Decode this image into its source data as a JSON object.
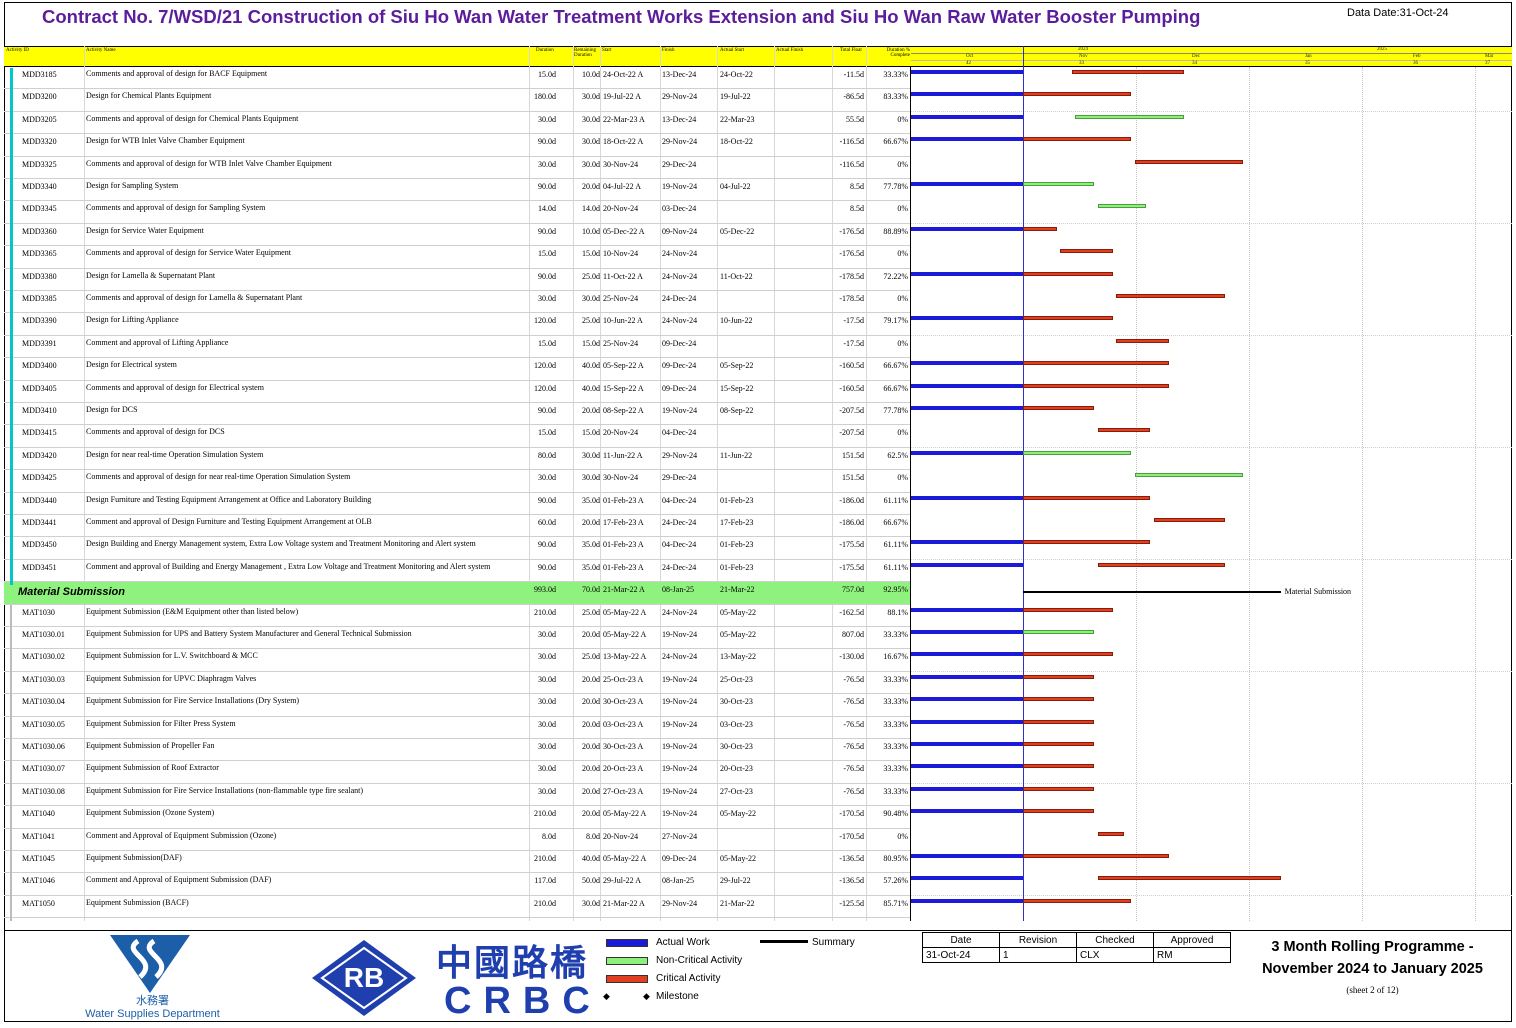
{
  "title": "Contract No. 7/WSD/21 Construction of Siu Ho Wan Water Treatment Works Extension and Siu Ho Wan Raw Water Booster Pumping",
  "data_date": "Data Date:31-Oct-24",
  "columns": [
    "Activity ID",
    "Activity Name",
    "Duration",
    "Remaining Duration",
    "Start",
    "Finish",
    "Actual Start",
    "Actual Finish",
    "Total Float",
    "Duration % Complete"
  ],
  "timescale": {
    "years": [
      "2024",
      "2025"
    ],
    "months": [
      "Oct",
      "Nov",
      "Dec",
      "Jan",
      "Feb",
      "Mar"
    ],
    "weeks": [
      "42",
      "33",
      "34",
      "35",
      "36",
      "37"
    ]
  },
  "rows": [
    {
      "id": "MDD3185",
      "name": "Comments and approval of design for BACF Equipment",
      "dur": "15.0d",
      "rem": "10.0d",
      "start": "24-Oct-22 A",
      "finish": "13-Dec-24",
      "astart": "24-Oct-22",
      "tf": "-11.5d",
      "pct": "33.33%"
    },
    {
      "id": "MDD3200",
      "name": "Design for Chemical Plants Equipment",
      "dur": "180.0d",
      "rem": "30.0d",
      "start": "19-Jul-22 A",
      "finish": "29-Nov-24",
      "astart": "19-Jul-22",
      "tf": "-86.5d",
      "pct": "83.33%"
    },
    {
      "id": "MDD3205",
      "name": "Comments and approval of design for Chemical Plants Equipment",
      "dur": "30.0d",
      "rem": "30.0d",
      "start": "22-Mar-23 A",
      "finish": "13-Dec-24",
      "astart": "22-Mar-23",
      "tf": "55.5d",
      "pct": "0%"
    },
    {
      "id": "MDD3320",
      "name": "Design for WTB Inlet Valve Chamber Equipment",
      "dur": "90.0d",
      "rem": "30.0d",
      "start": "18-Oct-22 A",
      "finish": "29-Nov-24",
      "astart": "18-Oct-22",
      "tf": "-116.5d",
      "pct": "66.67%"
    },
    {
      "id": "MDD3325",
      "name": "Comments and approval of design for WTB Inlet Valve Chamber Equipment",
      "dur": "30.0d",
      "rem": "30.0d",
      "start": "30-Nov-24",
      "finish": "29-Dec-24",
      "astart": "",
      "tf": "-116.5d",
      "pct": "0%"
    },
    {
      "id": "MDD3340",
      "name": "Design for Sampling System",
      "dur": "90.0d",
      "rem": "20.0d",
      "start": "04-Jul-22 A",
      "finish": "19-Nov-24",
      "astart": "04-Jul-22",
      "tf": "8.5d",
      "pct": "77.78%"
    },
    {
      "id": "MDD3345",
      "name": "Comments and approval of design for Sampling System",
      "dur": "14.0d",
      "rem": "14.0d",
      "start": "20-Nov-24",
      "finish": "03-Dec-24",
      "astart": "",
      "tf": "8.5d",
      "pct": "0%"
    },
    {
      "id": "MDD3360",
      "name": "Design for Service Water Equipment",
      "dur": "90.0d",
      "rem": "10.0d",
      "start": "05-Dec-22 A",
      "finish": "09-Nov-24",
      "astart": "05-Dec-22",
      "tf": "-176.5d",
      "pct": "88.89%"
    },
    {
      "id": "MDD3365",
      "name": "Comments and approval of design for Service Water Equipment",
      "dur": "15.0d",
      "rem": "15.0d",
      "start": "10-Nov-24",
      "finish": "24-Nov-24",
      "astart": "",
      "tf": "-176.5d",
      "pct": "0%"
    },
    {
      "id": "MDD3380",
      "name": "Design for Lamella & Supernatant Plant",
      "dur": "90.0d",
      "rem": "25.0d",
      "start": "11-Oct-22 A",
      "finish": "24-Nov-24",
      "astart": "11-Oct-22",
      "tf": "-178.5d",
      "pct": "72.22%"
    },
    {
      "id": "MDD3385",
      "name": "Comments and approval of design for Lamella & Supernatant Plant",
      "dur": "30.0d",
      "rem": "30.0d",
      "start": "25-Nov-24",
      "finish": "24-Dec-24",
      "astart": "",
      "tf": "-178.5d",
      "pct": "0%"
    },
    {
      "id": "MDD3390",
      "name": "Design for Lifting Appliance",
      "dur": "120.0d",
      "rem": "25.0d",
      "start": "10-Jun-22 A",
      "finish": "24-Nov-24",
      "astart": "10-Jun-22",
      "tf": "-17.5d",
      "pct": "79.17%"
    },
    {
      "id": "MDD3391",
      "name": "Comment and approval of Lifting Appliance",
      "dur": "15.0d",
      "rem": "15.0d",
      "start": "25-Nov-24",
      "finish": "09-Dec-24",
      "astart": "",
      "tf": "-17.5d",
      "pct": "0%"
    },
    {
      "id": "MDD3400",
      "name": "Design for Electrical system",
      "dur": "120.0d",
      "rem": "40.0d",
      "start": "05-Sep-22 A",
      "finish": "09-Dec-24",
      "astart": "05-Sep-22",
      "tf": "-160.5d",
      "pct": "66.67%"
    },
    {
      "id": "MDD3405",
      "name": "Comments and approval of design for Electrical system",
      "dur": "120.0d",
      "rem": "40.0d",
      "start": "15-Sep-22 A",
      "finish": "09-Dec-24",
      "astart": "15-Sep-22",
      "tf": "-160.5d",
      "pct": "66.67%"
    },
    {
      "id": "MDD3410",
      "name": "Design for DCS",
      "dur": "90.0d",
      "rem": "20.0d",
      "start": "08-Sep-22 A",
      "finish": "19-Nov-24",
      "astart": "08-Sep-22",
      "tf": "-207.5d",
      "pct": "77.78%"
    },
    {
      "id": "MDD3415",
      "name": "Comments and approval of design for DCS",
      "dur": "15.0d",
      "rem": "15.0d",
      "start": "20-Nov-24",
      "finish": "04-Dec-24",
      "astart": "",
      "tf": "-207.5d",
      "pct": "0%"
    },
    {
      "id": "MDD3420",
      "name": "Design for near real-time Operation Simulation System",
      "dur": "80.0d",
      "rem": "30.0d",
      "start": "11-Jun-22 A",
      "finish": "29-Nov-24",
      "astart": "11-Jun-22",
      "tf": "151.5d",
      "pct": "62.5%"
    },
    {
      "id": "MDD3425",
      "name": "Comments and approval of design for near real-time Operation Simulation System",
      "dur": "30.0d",
      "rem": "30.0d",
      "start": "30-Nov-24",
      "finish": "29-Dec-24",
      "astart": "",
      "tf": "151.5d",
      "pct": "0%"
    },
    {
      "id": "MDD3440",
      "name": "Design Furniture and Testing Equipment Arrangement at Office and Laboratory Building",
      "dur": "90.0d",
      "rem": "35.0d",
      "start": "01-Feb-23 A",
      "finish": "04-Dec-24",
      "astart": "01-Feb-23",
      "tf": "-186.0d",
      "pct": "61.11%"
    },
    {
      "id": "MDD3441",
      "name": "Comment and approval of Design Furniture and Testing Equipment Arrangement at OLB",
      "dur": "60.0d",
      "rem": "20.0d",
      "start": "17-Feb-23 A",
      "finish": "24-Dec-24",
      "astart": "17-Feb-23",
      "tf": "-186.0d",
      "pct": "66.67%"
    },
    {
      "id": "MDD3450",
      "name": "Design Building and Energy Management system, Extra Low Voltage system and Treatment Monitoring and Alert system",
      "dur": "90.0d",
      "rem": "35.0d",
      "start": "01-Feb-23 A",
      "finish": "04-Dec-24",
      "astart": "01-Feb-23",
      "tf": "-175.5d",
      "pct": "61.11%"
    },
    {
      "id": "MDD3451",
      "name": "Comment and approval of Building and Energy Management , Extra Low Voltage and Treatment Monitoring and Alert system",
      "dur": "90.0d",
      "rem": "35.0d",
      "start": "01-Feb-23 A",
      "finish": "24-Dec-24",
      "astart": "01-Feb-23",
      "tf": "-175.5d",
      "pct": "61.11%"
    },
    {
      "group": true,
      "name": "Material Submission",
      "dur": "993.0d",
      "rem": "70.0d",
      "start": "21-Mar-22 A",
      "finish": "08-Jan-25",
      "astart": "21-Mar-22",
      "tf": "757.0d",
      "pct": "92.95%"
    },
    {
      "id": "MAT1030",
      "name": "Equipment Submission (E&M Equipment other than listed below)",
      "dur": "210.0d",
      "rem": "25.0d",
      "start": "05-May-22 A",
      "finish": "24-Nov-24",
      "astart": "05-May-22",
      "tf": "-162.5d",
      "pct": "88.1%"
    },
    {
      "id": "MAT1030.01",
      "name": "Equipment Submission for UPS and Battery System Manufacturer and General Technical Submission",
      "dur": "30.0d",
      "rem": "20.0d",
      "start": "05-May-22 A",
      "finish": "19-Nov-24",
      "astart": "05-May-22",
      "tf": "807.0d",
      "pct": "33.33%"
    },
    {
      "id": "MAT1030.02",
      "name": "Equipment Submission for L.V. Switchboard & MCC",
      "dur": "30.0d",
      "rem": "25.0d",
      "start": "13-May-22 A",
      "finish": "24-Nov-24",
      "astart": "13-May-22",
      "tf": "-130.0d",
      "pct": "16.67%"
    },
    {
      "id": "MAT1030.03",
      "name": "Equipment Submission for UPVC Diaphragm Valves",
      "dur": "30.0d",
      "rem": "20.0d",
      "start": "25-Oct-23 A",
      "finish": "19-Nov-24",
      "astart": "25-Oct-23",
      "tf": "-76.5d",
      "pct": "33.33%"
    },
    {
      "id": "MAT1030.04",
      "name": "Equipment Submission for Fire Service Installations (Dry System)",
      "dur": "30.0d",
      "rem": "20.0d",
      "start": "30-Oct-23 A",
      "finish": "19-Nov-24",
      "astart": "30-Oct-23",
      "tf": "-76.5d",
      "pct": "33.33%"
    },
    {
      "id": "MAT1030.05",
      "name": "Equipment Submission for Filter Press System",
      "dur": "30.0d",
      "rem": "20.0d",
      "start": "03-Oct-23 A",
      "finish": "19-Nov-24",
      "astart": "03-Oct-23",
      "tf": "-76.5d",
      "pct": "33.33%"
    },
    {
      "id": "MAT1030.06",
      "name": "Equipment Submission of Propeller Fan",
      "dur": "30.0d",
      "rem": "20.0d",
      "start": "30-Oct-23 A",
      "finish": "19-Nov-24",
      "astart": "30-Oct-23",
      "tf": "-76.5d",
      "pct": "33.33%"
    },
    {
      "id": "MAT1030.07",
      "name": "Equipment Submission of Roof Extractor",
      "dur": "30.0d",
      "rem": "20.0d",
      "start": "20-Oct-23 A",
      "finish": "19-Nov-24",
      "astart": "20-Oct-23",
      "tf": "-76.5d",
      "pct": "33.33%"
    },
    {
      "id": "MAT1030.08",
      "name": "Equipment Submission for Fire Service Installations (non-flammable type fire sealant)",
      "dur": "30.0d",
      "rem": "20.0d",
      "start": "27-Oct-23 A",
      "finish": "19-Nov-24",
      "astart": "27-Oct-23",
      "tf": "-76.5d",
      "pct": "33.33%"
    },
    {
      "id": "MAT1040",
      "name": "Equipment Submission (Ozone System)",
      "dur": "210.0d",
      "rem": "20.0d",
      "start": "05-May-22 A",
      "finish": "19-Nov-24",
      "astart": "05-May-22",
      "tf": "-170.5d",
      "pct": "90.48%"
    },
    {
      "id": "MAT1041",
      "name": "Comment and Approval of Equipment Submission (Ozone)",
      "dur": "8.0d",
      "rem": "8.0d",
      "start": "20-Nov-24",
      "finish": "27-Nov-24",
      "astart": "",
      "tf": "-170.5d",
      "pct": "0%"
    },
    {
      "id": "MAT1045",
      "name": "Equipment Submission(DAF)",
      "dur": "210.0d",
      "rem": "40.0d",
      "start": "05-May-22 A",
      "finish": "09-Dec-24",
      "astart": "05-May-22",
      "tf": "-136.5d",
      "pct": "80.95%"
    },
    {
      "id": "MAT1046",
      "name": "Comment and Approval of Equipment Submission (DAF)",
      "dur": "117.0d",
      "rem": "50.0d",
      "start": "29-Jul-22 A",
      "finish": "08-Jan-25",
      "astart": "29-Jul-22",
      "tf": "-136.5d",
      "pct": "57.26%"
    },
    {
      "id": "MAT1050",
      "name": "Equipment Submission (BACF)",
      "dur": "210.0d",
      "rem": "30.0d",
      "start": "21-Mar-22 A",
      "finish": "29-Nov-24",
      "astart": "21-Mar-22",
      "tf": "-125.5d",
      "pct": "85.71%"
    }
  ],
  "gantt_bars": [
    {
      "a": 1,
      "s": "13-Nov-24",
      "f": "13-Dec-24",
      "t": "crit"
    },
    {
      "a": 1,
      "s": "31-Oct-24",
      "f": "29-Nov-24",
      "t": "crit"
    },
    {
      "a": 1,
      "s": "14-Nov-24",
      "f": "13-Dec-24",
      "t": "noncrit"
    },
    {
      "a": 1,
      "s": "31-Oct-24",
      "f": "29-Nov-24",
      "t": "crit"
    },
    {
      "a": 0,
      "s": "30-Nov-24",
      "f": "29-Dec-24",
      "t": "crit"
    },
    {
      "a": 1,
      "s": "31-Oct-24",
      "f": "19-Nov-24",
      "t": "noncrit"
    },
    {
      "a": 0,
      "s": "20-Nov-24",
      "f": "03-Dec-24",
      "t": "noncrit"
    },
    {
      "a": 1,
      "s": "31-Oct-24",
      "f": "09-Nov-24",
      "t": "crit"
    },
    {
      "a": 0,
      "s": "10-Nov-24",
      "f": "24-Nov-24",
      "t": "crit"
    },
    {
      "a": 1,
      "s": "31-Oct-24",
      "f": "24-Nov-24",
      "t": "crit"
    },
    {
      "a": 0,
      "s": "25-Nov-24",
      "f": "24-Dec-24",
      "t": "crit"
    },
    {
      "a": 1,
      "s": "31-Oct-24",
      "f": "24-Nov-24",
      "t": "crit"
    },
    {
      "a": 0,
      "s": "25-Nov-24",
      "f": "09-Dec-24",
      "t": "crit"
    },
    {
      "a": 1,
      "s": "31-Oct-24",
      "f": "09-Dec-24",
      "t": "crit"
    },
    {
      "a": 1,
      "s": "31-Oct-24",
      "f": "09-Dec-24",
      "t": "crit"
    },
    {
      "a": 1,
      "s": "31-Oct-24",
      "f": "19-Nov-24",
      "t": "crit"
    },
    {
      "a": 0,
      "s": "20-Nov-24",
      "f": "04-Dec-24",
      "t": "crit"
    },
    {
      "a": 1,
      "s": "31-Oct-24",
      "f": "29-Nov-24",
      "t": "noncrit"
    },
    {
      "a": 0,
      "s": "30-Nov-24",
      "f": "29-Dec-24",
      "t": "noncrit"
    },
    {
      "a": 1,
      "s": "31-Oct-24",
      "f": "04-Dec-24",
      "t": "crit"
    },
    {
      "a": 0,
      "s": "05-Dec-24",
      "f": "24-Dec-24",
      "t": "crit"
    },
    {
      "a": 1,
      "s": "31-Oct-24",
      "f": "04-Dec-24",
      "t": "crit"
    },
    {
      "a": 1,
      "s": "20-Nov-24",
      "f": "24-Dec-24",
      "t": "crit"
    },
    {
      "summary": true,
      "s": "31-Oct-24",
      "f": "08-Jan-25"
    },
    {
      "a": 1,
      "s": "31-Oct-24",
      "f": "24-Nov-24",
      "t": "crit"
    },
    {
      "a": 1,
      "s": "31-Oct-24",
      "f": "19-Nov-24",
      "t": "noncrit"
    },
    {
      "a": 1,
      "s": "31-Oct-24",
      "f": "24-Nov-24",
      "t": "crit"
    },
    {
      "a": 1,
      "s": "31-Oct-24",
      "f": "19-Nov-24",
      "t": "crit"
    },
    {
      "a": 1,
      "s": "31-Oct-24",
      "f": "19-Nov-24",
      "t": "crit"
    },
    {
      "a": 1,
      "s": "31-Oct-24",
      "f": "19-Nov-24",
      "t": "crit"
    },
    {
      "a": 1,
      "s": "31-Oct-24",
      "f": "19-Nov-24",
      "t": "crit"
    },
    {
      "a": 1,
      "s": "31-Oct-24",
      "f": "19-Nov-24",
      "t": "crit"
    },
    {
      "a": 1,
      "s": "31-Oct-24",
      "f": "19-Nov-24",
      "t": "crit"
    },
    {
      "a": 1,
      "s": "31-Oct-24",
      "f": "19-Nov-24",
      "t": "crit"
    },
    {
      "a": 0,
      "s": "20-Nov-24",
      "f": "27-Nov-24",
      "t": "crit"
    },
    {
      "a": 1,
      "s": "31-Oct-24",
      "f": "09-Dec-24",
      "t": "crit"
    },
    {
      "a": 1,
      "s": "20-Nov-24",
      "f": "08-Jan-25",
      "t": "crit"
    },
    {
      "a": 1,
      "s": "31-Oct-24",
      "f": "29-Nov-24",
      "t": "crit"
    }
  ],
  "summary_label": "Material Submission",
  "legend": {
    "actual": "Actual Work",
    "noncrit": "Non-Critical Activity",
    "crit": "Critical Activity",
    "milestone": "Milestone",
    "summary": "Summary"
  },
  "colors": {
    "actual": "#1a1ad8",
    "noncrit": "#8ef07c",
    "crit": "#e0401e",
    "header": "#ffff00",
    "title": "#5b1d9c",
    "group": "#90f27e"
  },
  "logos": {
    "wsd_cn": "水務署",
    "wsd_en": "Water Supplies Department",
    "rb": "RB",
    "crbc_cn": "中國路橋",
    "crbc_en": "CRBC"
  },
  "revision": {
    "headers": [
      "Date",
      "Revision",
      "Checked",
      "Approved"
    ],
    "values": [
      "31-Oct-24",
      "1",
      "CLX",
      "RM"
    ]
  },
  "programme": {
    "line1": "3 Month Rolling Programme -",
    "line2": "November 2024 to January 2025",
    "sheet": "(sheet 2 of 12)"
  }
}
